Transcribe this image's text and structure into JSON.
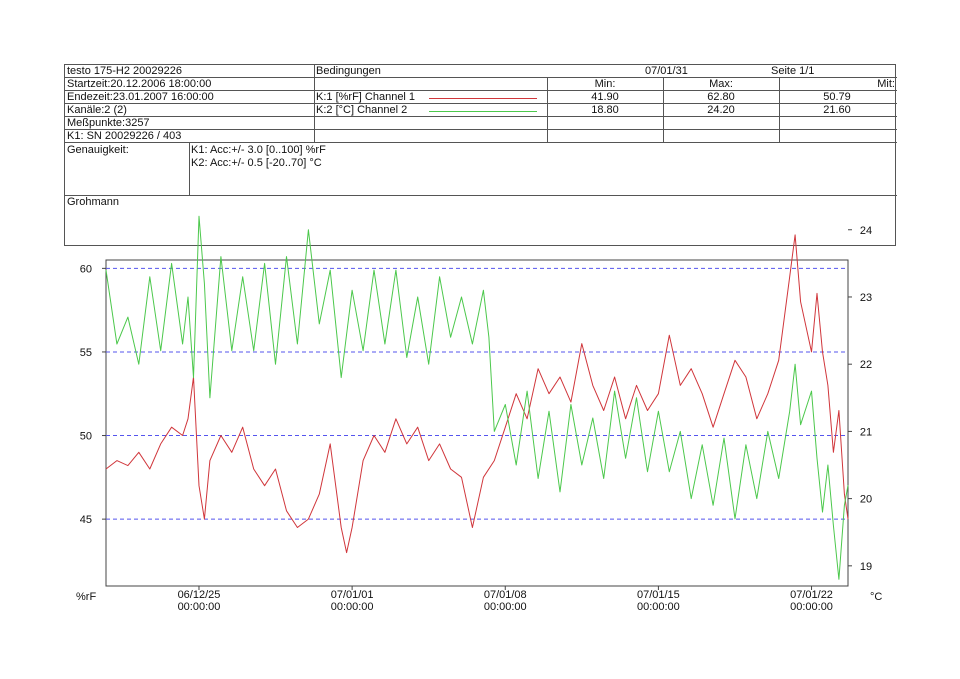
{
  "header": {
    "device": "testo 175-H2 20029226",
    "start": "Startzeit:20.12.2006 18:00:00",
    "end": "Endezeit:23.01.2007 16:00:00",
    "channels": "Kanäle:2 (2)",
    "points": "Meßpunkte:3257",
    "serial": "K1: SN 20029226 / 403",
    "conditions_label": "Bedingungen",
    "date": "07/01/31",
    "page": "Seite 1/1",
    "min_label": "Min:",
    "max_label": "Max:",
    "mit_label": "Mit:",
    "rows": [
      {
        "label": "K:1 [%rF] Channel 1",
        "color": "#d0363b",
        "min": "41.90",
        "max": "62.80",
        "mit": "50.79"
      },
      {
        "label": "K:2 [°C] Channel 2",
        "color": "#4cc84c",
        "min": "18.80",
        "max": "24.20",
        "mit": "21.60"
      }
    ],
    "accuracy_label": "Genauigkeit:",
    "accuracy_k1": "K1: Acc:+/- 3.0 [0..100] %rF",
    "accuracy_k2": "K2: Acc:+/- 0.5 [-20..70] °C",
    "operator": "Grohmann"
  },
  "chart_data": {
    "type": "line",
    "xlabel": "",
    "ylabel_left": "%rF",
    "ylabel_right": "°C",
    "x_range": [
      "2006-12-20 18:00",
      "2007-01-23 16:00"
    ],
    "x_ticks": [
      {
        "date": "2006-12-25",
        "label1": "06/12/25",
        "label2": "00:00:00"
      },
      {
        "date": "2007-01-01",
        "label1": "07/01/01",
        "label2": "00:00:00"
      },
      {
        "date": "2007-01-08",
        "label1": "07/01/08",
        "label2": "00:00:00"
      },
      {
        "date": "2007-01-15",
        "label1": "07/01/15",
        "label2": "00:00:00"
      },
      {
        "date": "2007-01-22",
        "label1": "07/01/22",
        "label2": "00:00:00"
      }
    ],
    "y_left": {
      "range": [
        41.0,
        60.5
      ],
      "ticks": [
        45,
        50,
        55,
        60
      ]
    },
    "y_right": {
      "range": [
        18.7,
        23.55
      ],
      "ticks": [
        19,
        20,
        21,
        22,
        23,
        24
      ]
    },
    "grid_lines_left": [
      45,
      50,
      55,
      60
    ],
    "grid_color": "#5555ee",
    "series": [
      {
        "name": "Channel 1",
        "axis": "left",
        "color": "#d0363b",
        "points": [
          [
            "2006-12-20 18:00",
            48.0
          ],
          [
            "2006-12-21 06:00",
            48.5
          ],
          [
            "2006-12-21 18:00",
            48.2
          ],
          [
            "2006-12-22 06:00",
            49.0
          ],
          [
            "2006-12-22 18:00",
            48.0
          ],
          [
            "2006-12-23 06:00",
            49.5
          ],
          [
            "2006-12-23 18:00",
            50.5
          ],
          [
            "2006-12-24 06:00",
            50.0
          ],
          [
            "2006-12-24 12:00",
            51.0
          ],
          [
            "2006-12-24 18:00",
            53.5
          ],
          [
            "2006-12-25 00:00",
            47.0
          ],
          [
            "2006-12-25 06:00",
            45.0
          ],
          [
            "2006-12-25 12:00",
            48.5
          ],
          [
            "2006-12-26 00:00",
            50.0
          ],
          [
            "2006-12-26 12:00",
            49.0
          ],
          [
            "2006-12-27 00:00",
            50.5
          ],
          [
            "2006-12-27 12:00",
            48.0
          ],
          [
            "2006-12-28 00:00",
            47.0
          ],
          [
            "2006-12-28 12:00",
            48.0
          ],
          [
            "2006-12-29 00:00",
            45.5
          ],
          [
            "2006-12-29 12:00",
            44.5
          ],
          [
            "2006-12-30 00:00",
            45.0
          ],
          [
            "2006-12-30 12:00",
            46.5
          ],
          [
            "2006-12-31 00:00",
            49.5
          ],
          [
            "2006-12-31 06:00",
            47.0
          ],
          [
            "2006-12-31 12:00",
            44.5
          ],
          [
            "2006-12-31 18:00",
            43.0
          ],
          [
            "2007-01-01 00:00",
            44.5
          ],
          [
            "2007-01-01 12:00",
            48.5
          ],
          [
            "2007-01-02 00:00",
            50.0
          ],
          [
            "2007-01-02 12:00",
            49.0
          ],
          [
            "2007-01-03 00:00",
            51.0
          ],
          [
            "2007-01-03 12:00",
            49.5
          ],
          [
            "2007-01-04 00:00",
            50.5
          ],
          [
            "2007-01-04 12:00",
            48.5
          ],
          [
            "2007-01-05 00:00",
            49.5
          ],
          [
            "2007-01-05 12:00",
            48.0
          ],
          [
            "2007-01-06 00:00",
            47.5
          ],
          [
            "2007-01-06 12:00",
            44.5
          ],
          [
            "2007-01-07 00:00",
            47.5
          ],
          [
            "2007-01-07 12:00",
            48.5
          ],
          [
            "2007-01-08 00:00",
            50.5
          ],
          [
            "2007-01-08 12:00",
            52.5
          ],
          [
            "2007-01-09 00:00",
            51.0
          ],
          [
            "2007-01-09 12:00",
            54.0
          ],
          [
            "2007-01-10 00:00",
            52.5
          ],
          [
            "2007-01-10 12:00",
            53.5
          ],
          [
            "2007-01-11 00:00",
            52.0
          ],
          [
            "2007-01-11 12:00",
            55.5
          ],
          [
            "2007-01-12 00:00",
            53.0
          ],
          [
            "2007-01-12 12:00",
            51.5
          ],
          [
            "2007-01-13 00:00",
            53.5
          ],
          [
            "2007-01-13 12:00",
            51.0
          ],
          [
            "2007-01-14 00:00",
            53.0
          ],
          [
            "2007-01-14 12:00",
            51.5
          ],
          [
            "2007-01-15 00:00",
            52.5
          ],
          [
            "2007-01-15 12:00",
            56.0
          ],
          [
            "2007-01-16 00:00",
            53.0
          ],
          [
            "2007-01-16 12:00",
            54.0
          ],
          [
            "2007-01-17 00:00",
            52.5
          ],
          [
            "2007-01-17 12:00",
            50.5
          ],
          [
            "2007-01-18 00:00",
            52.5
          ],
          [
            "2007-01-18 12:00",
            54.5
          ],
          [
            "2007-01-19 00:00",
            53.5
          ],
          [
            "2007-01-19 12:00",
            51.0
          ],
          [
            "2007-01-20 00:00",
            52.5
          ],
          [
            "2007-01-20 12:00",
            54.5
          ],
          [
            "2007-01-21 00:00",
            59.5
          ],
          [
            "2007-01-21 06:00",
            62.0
          ],
          [
            "2007-01-21 12:00",
            58.0
          ],
          [
            "2007-01-22 00:00",
            55.0
          ],
          [
            "2007-01-22 06:00",
            58.5
          ],
          [
            "2007-01-22 12:00",
            55.0
          ],
          [
            "2007-01-22 18:00",
            53.0
          ],
          [
            "2007-01-23 00:00",
            49.0
          ],
          [
            "2007-01-23 06:00",
            51.5
          ],
          [
            "2007-01-23 12:00",
            46.5
          ],
          [
            "2007-01-23 16:00",
            45.0
          ]
        ]
      },
      {
        "name": "Channel 2",
        "axis": "right",
        "color": "#4cc84c",
        "points": [
          [
            "2006-12-20 18:00",
            23.4
          ],
          [
            "2006-12-21 06:00",
            22.3
          ],
          [
            "2006-12-21 18:00",
            22.7
          ],
          [
            "2006-12-22 06:00",
            22.0
          ],
          [
            "2006-12-22 18:00",
            23.3
          ],
          [
            "2006-12-23 06:00",
            22.2
          ],
          [
            "2006-12-23 18:00",
            23.5
          ],
          [
            "2006-12-24 06:00",
            22.3
          ],
          [
            "2006-12-24 12:00",
            23.0
          ],
          [
            "2006-12-24 18:00",
            21.8
          ],
          [
            "2006-12-25 00:00",
            24.2
          ],
          [
            "2006-12-25 06:00",
            23.2
          ],
          [
            "2006-12-25 12:00",
            21.5
          ],
          [
            "2006-12-26 00:00",
            23.6
          ],
          [
            "2006-12-26 12:00",
            22.2
          ],
          [
            "2006-12-27 00:00",
            23.3
          ],
          [
            "2006-12-27 12:00",
            22.2
          ],
          [
            "2006-12-28 00:00",
            23.5
          ],
          [
            "2006-12-28 12:00",
            22.0
          ],
          [
            "2006-12-29 00:00",
            23.6
          ],
          [
            "2006-12-29 12:00",
            22.3
          ],
          [
            "2006-12-30 00:00",
            24.0
          ],
          [
            "2006-12-30 12:00",
            22.6
          ],
          [
            "2006-12-31 00:00",
            23.4
          ],
          [
            "2006-12-31 12:00",
            21.8
          ],
          [
            "2007-01-01 00:00",
            23.1
          ],
          [
            "2007-01-01 12:00",
            22.2
          ],
          [
            "2007-01-02 00:00",
            23.4
          ],
          [
            "2007-01-02 12:00",
            22.3
          ],
          [
            "2007-01-03 00:00",
            23.4
          ],
          [
            "2007-01-03 12:00",
            22.1
          ],
          [
            "2007-01-04 00:00",
            23.0
          ],
          [
            "2007-01-04 12:00",
            22.0
          ],
          [
            "2007-01-05 00:00",
            23.3
          ],
          [
            "2007-01-05 12:00",
            22.4
          ],
          [
            "2007-01-06 00:00",
            23.0
          ],
          [
            "2007-01-06 12:00",
            22.3
          ],
          [
            "2007-01-07 00:00",
            23.1
          ],
          [
            "2007-01-07 06:00",
            22.4
          ],
          [
            "2007-01-07 12:00",
            21.0
          ],
          [
            "2007-01-08 00:00",
            21.4
          ],
          [
            "2007-01-08 12:00",
            20.5
          ],
          [
            "2007-01-09 00:00",
            21.6
          ],
          [
            "2007-01-09 12:00",
            20.3
          ],
          [
            "2007-01-10 00:00",
            21.3
          ],
          [
            "2007-01-10 12:00",
            20.1
          ],
          [
            "2007-01-11 00:00",
            21.4
          ],
          [
            "2007-01-11 12:00",
            20.5
          ],
          [
            "2007-01-12 00:00",
            21.2
          ],
          [
            "2007-01-12 12:00",
            20.3
          ],
          [
            "2007-01-13 00:00",
            21.6
          ],
          [
            "2007-01-13 12:00",
            20.6
          ],
          [
            "2007-01-14 00:00",
            21.5
          ],
          [
            "2007-01-14 12:00",
            20.4
          ],
          [
            "2007-01-15 00:00",
            21.3
          ],
          [
            "2007-01-15 12:00",
            20.4
          ],
          [
            "2007-01-16 00:00",
            21.0
          ],
          [
            "2007-01-16 12:00",
            20.0
          ],
          [
            "2007-01-17 00:00",
            20.8
          ],
          [
            "2007-01-17 12:00",
            19.9
          ],
          [
            "2007-01-18 00:00",
            20.9
          ],
          [
            "2007-01-18 12:00",
            19.7
          ],
          [
            "2007-01-19 00:00",
            20.8
          ],
          [
            "2007-01-19 12:00",
            20.0
          ],
          [
            "2007-01-20 00:00",
            21.0
          ],
          [
            "2007-01-20 12:00",
            20.3
          ],
          [
            "2007-01-21 00:00",
            21.3
          ],
          [
            "2007-01-21 06:00",
            22.0
          ],
          [
            "2007-01-21 12:00",
            21.1
          ],
          [
            "2007-01-22 00:00",
            21.6
          ],
          [
            "2007-01-22 06:00",
            20.6
          ],
          [
            "2007-01-22 12:00",
            19.8
          ],
          [
            "2007-01-22 18:00",
            20.5
          ],
          [
            "2007-01-23 00:00",
            19.6
          ],
          [
            "2007-01-23 06:00",
            18.8
          ],
          [
            "2007-01-23 12:00",
            19.9
          ],
          [
            "2007-01-23 16:00",
            20.2
          ]
        ]
      }
    ]
  }
}
